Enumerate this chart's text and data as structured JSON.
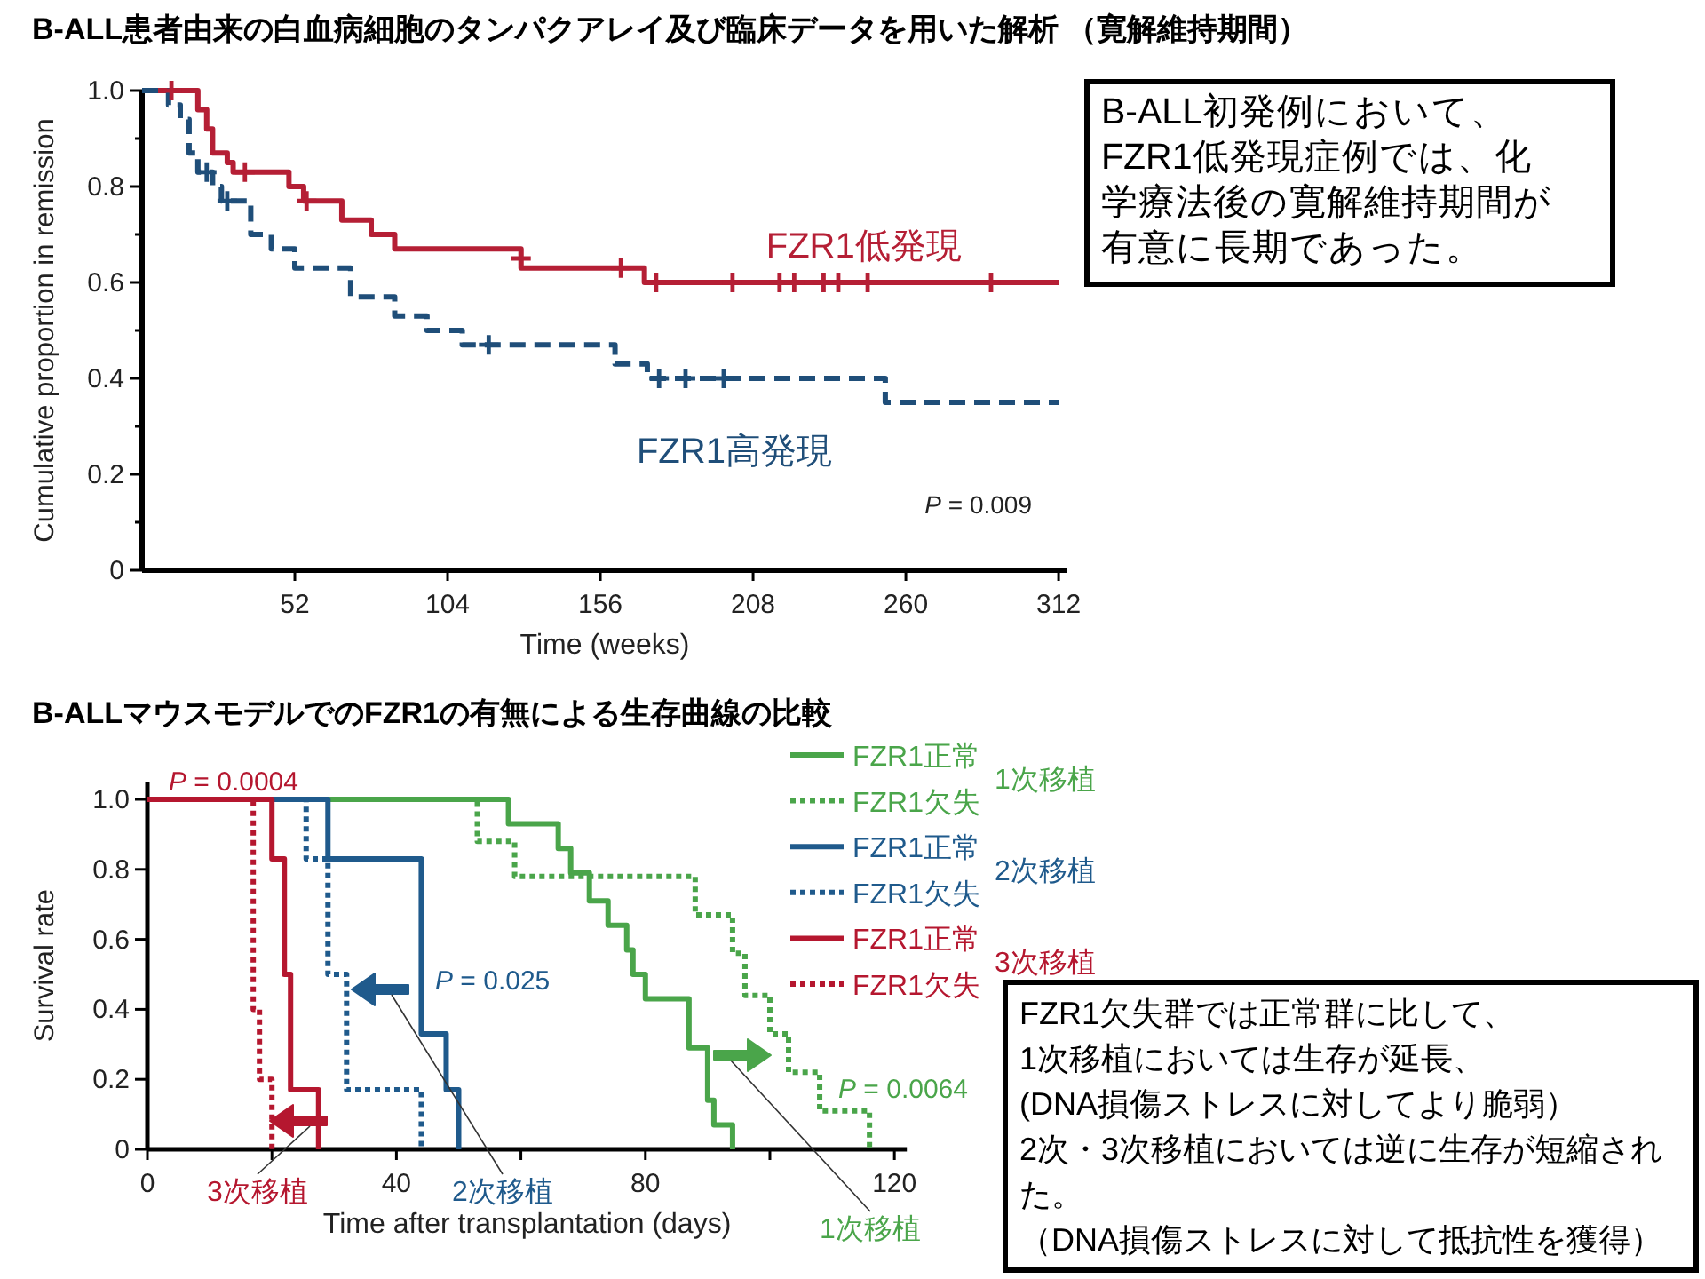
{
  "chart_data": [
    {
      "type": "step",
      "title": "B-ALL患者由来の白血病細胞のタンパクアレイ及び臨床データを用いた解析 （寛解維持期間）",
      "xlabel": "Time (weeks)",
      "ylabel": "Cumulative proportion in remission",
      "xlim": [
        0,
        315
      ],
      "ylim": [
        0,
        1.0
      ],
      "xticks": [
        52,
        104,
        156,
        208,
        260,
        312
      ],
      "yticks": [
        0,
        {
          "value": 0.1,
          "label": null
        },
        0.2,
        {
          "value": 0.3,
          "label": null
        },
        0.4,
        {
          "value": 0.5,
          "label": null
        },
        0.6,
        {
          "value": 0.7,
          "label": null
        },
        0.8,
        {
          "value": 0.9,
          "label": null
        },
        {
          "value": 1,
          "label": "1.0"
        }
      ],
      "legend": false,
      "annotations": [
        "*P* = 0.009",
        "B-ALL初発例において、FZR1低発現症例では、化学療法後の寛解維持期間が有意に長期であった。"
      ],
      "series": [
        {
          "name": "FZR1低発現",
          "color": "#b51f35",
          "line_style": "solid",
          "x": [
            0,
            19,
            22,
            24,
            29,
            31,
            50,
            55,
            68,
            78,
            86,
            129,
            171,
            312
          ],
          "values": [
            1,
            0.96,
            0.92,
            0.87,
            0.85,
            0.83,
            0.8,
            0.77,
            0.73,
            0.7,
            0.67,
            0.63,
            0.6,
            0.6
          ]
        },
        {
          "name": "FZR1高発現",
          "color": "#1f4e79",
          "line_style": "dashed",
          "x": [
            0,
            9,
            13,
            16,
            19,
            24,
            27,
            37,
            44,
            52,
            71,
            86,
            97,
            109,
            161,
            172,
            253,
            312
          ],
          "values": [
            1,
            0.97,
            0.94,
            0.87,
            0.83,
            0.8,
            0.77,
            0.7,
            0.67,
            0.63,
            0.57,
            0.53,
            0.5,
            0.47,
            0.43,
            0.4,
            0.35,
            0.35
          ]
        },
        {
          "type": "scatter",
          "marker": "cross",
          "color": "#b51f35",
          "x": [
            10,
            35,
            56,
            129,
            163,
            175,
            201,
            217,
            222,
            232,
            237,
            247,
            289
          ],
          "values": [
            1,
            0.83,
            0.77,
            0.65,
            0.63,
            0.6,
            0.6,
            0.6,
            0.6,
            0.6,
            0.6,
            0.6,
            0.6
          ]
        },
        {
          "type": "scatter",
          "marker": "cross",
          "color": "#1f4e79",
          "x": [
            22,
            29,
            118,
            176,
            185,
            198
          ],
          "values": [
            0.83,
            0.77,
            0.47,
            0.4,
            0.4,
            0.4
          ]
        }
      ]
    },
    {
      "type": "step",
      "title": "B-ALLマウスモデルでのFZR1の有無による生存曲線の比較",
      "xlabel": "Time after transplantation (days)",
      "ylabel": "Survival rate",
      "xlim": [
        0,
        122
      ],
      "ylim": [
        0,
        1.05
      ],
      "xticks": [
        0,
        {
          "value": 20,
          "label": null
        },
        40,
        {
          "value": 60,
          "label": null
        },
        80,
        {
          "value": 100,
          "label": null
        },
        120
      ],
      "yticks": [
        0,
        0.2,
        0.4,
        0.6,
        0.8,
        {
          "value": 1,
          "label": "1.0"
        }
      ],
      "legend": "right",
      "annotations": [
        "*P* = 0.0064",
        "*P* = 0.025",
        "*P* = 0.0004",
        "1次移植",
        "2次移植",
        "3次移植",
        "1次移植",
        "2次移植",
        "3次移植",
        "FZR1欠失群では正常群に比して、",
        "1次移植においては生存が延長、",
        "(DNA損傷ストレスに対してより脆弱）",
        "2次・3次移植においては逆に生存が短縮された。",
        "（DNA損傷ストレスに対して抵抗性を獲得）"
      ],
      "series": [
        {
          "name": "FZR1正常",
          "color": "#4aa54a",
          "line_style": "solid",
          "x": [
            0,
            58,
            66,
            68,
            71,
            74,
            77,
            78,
            80,
            87,
            90,
            91,
            94
          ],
          "values": [
            1,
            0.93,
            0.86,
            0.79,
            0.71,
            0.64,
            0.57,
            0.5,
            0.43,
            0.29,
            0.14,
            0.07,
            0
          ]
        },
        {
          "name": "FZR1欠失",
          "color": "#4aa54a",
          "line_style": "dotted",
          "x": [
            0,
            53,
            59,
            88,
            94,
            96,
            100,
            103,
            108,
            116
          ],
          "values": [
            1,
            0.88,
            0.78,
            0.67,
            0.56,
            0.44,
            0.33,
            0.22,
            0.11,
            0
          ]
        },
        {
          "name": "FZR1正常",
          "color": "#1f5a8c",
          "line_style": "solid",
          "x": [
            0,
            29,
            44,
            48,
            50
          ],
          "values": [
            1,
            0.83,
            0.33,
            0.17,
            0
          ]
        },
        {
          "name": "FZR1欠失",
          "color": "#1f5a8c",
          "line_style": "dotted",
          "x": [
            0,
            25.5,
            29,
            32,
            44
          ],
          "values": [
            1,
            0.83,
            0.5,
            0.17,
            0
          ]
        },
        {
          "name": "FZR1正常",
          "color": "#b5172f",
          "line_style": "solid",
          "x": [
            0,
            20,
            22,
            23,
            27.5
          ],
          "values": [
            1,
            0.83,
            0.5,
            0.17,
            0
          ]
        },
        {
          "name": "FZR1欠失",
          "color": "#b5172f",
          "line_style": "dotted",
          "x": [
            0,
            17,
            18,
            20
          ],
          "values": [
            1,
            0.4,
            0.2,
            0
          ]
        }
      ]
    }
  ]
}
